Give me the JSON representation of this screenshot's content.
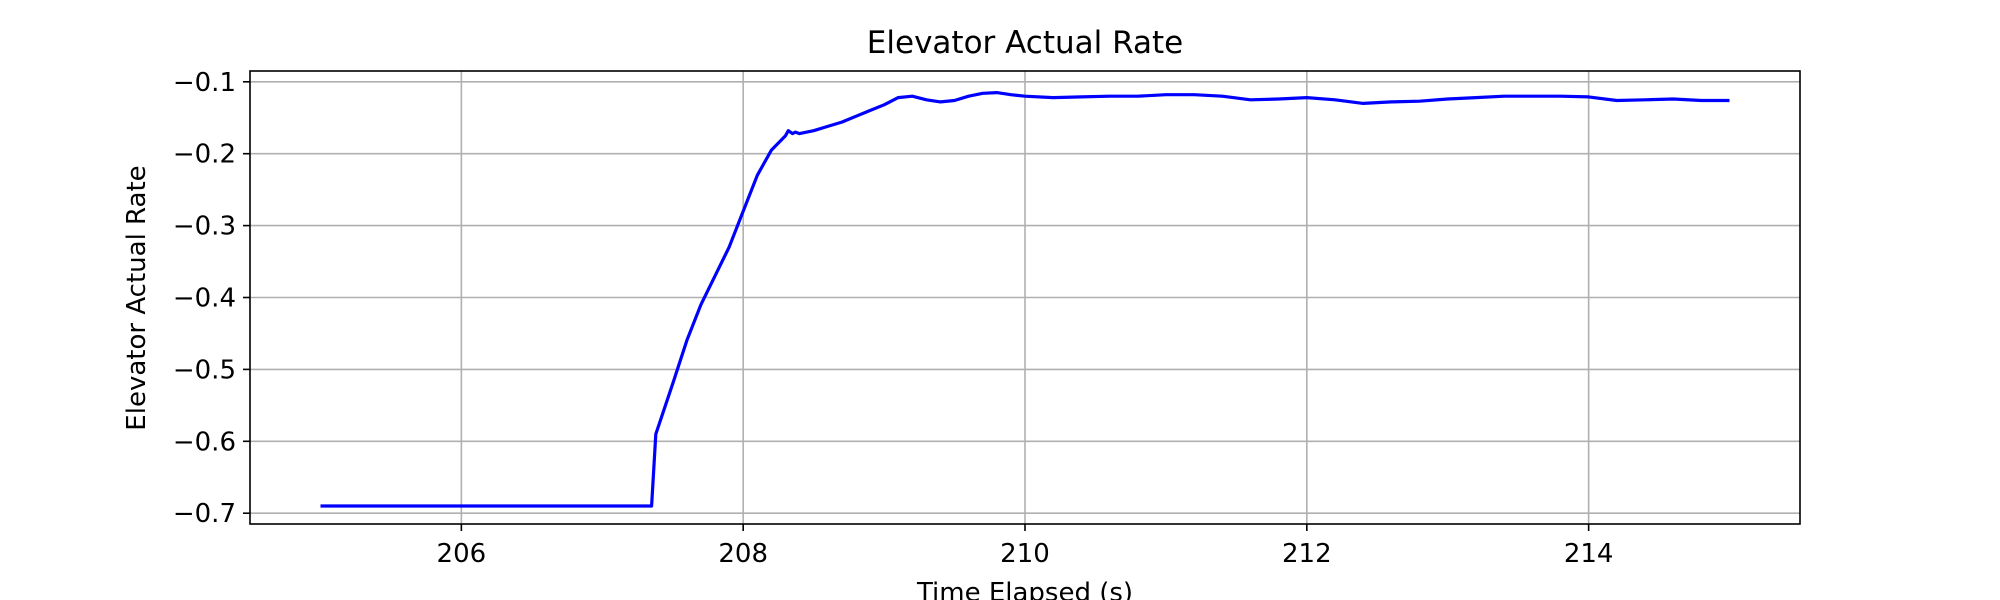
{
  "chart_data": {
    "type": "line",
    "title": "Elevator Actual Rate",
    "xlabel": "Time Elapsed (s)",
    "ylabel": "Elevator Actual Rate",
    "xlim": [
      204.5,
      215.5
    ],
    "ylim": [
      -0.715,
      -0.085
    ],
    "xticks": [
      206,
      208,
      210,
      212,
      214
    ],
    "xtick_labels": [
      "206",
      "208",
      "210",
      "212",
      "214"
    ],
    "yticks": [
      -0.1,
      -0.2,
      -0.3,
      -0.4,
      -0.5,
      -0.6,
      -0.7
    ],
    "ytick_labels": [
      "−0.1",
      "−0.2",
      "−0.3",
      "−0.4",
      "−0.5",
      "−0.6",
      "−0.7"
    ],
    "grid": true,
    "series": [
      {
        "color": "#0000ff",
        "x": [
          205.0,
          206.0,
          207.0,
          207.35,
          207.38,
          207.5,
          207.6,
          207.7,
          207.8,
          207.9,
          208.0,
          208.1,
          208.2,
          208.3,
          208.32,
          208.35,
          208.37,
          208.4,
          208.5,
          208.6,
          208.7,
          208.8,
          208.9,
          209.0,
          209.1,
          209.2,
          209.3,
          209.4,
          209.5,
          209.6,
          209.7,
          209.8,
          209.9,
          210.0,
          210.2,
          210.4,
          210.6,
          210.8,
          211.0,
          211.2,
          211.4,
          211.6,
          211.8,
          212.0,
          212.2,
          212.4,
          212.6,
          212.8,
          213.0,
          213.2,
          213.4,
          213.6,
          213.8,
          214.0,
          214.2,
          214.4,
          214.6,
          214.8,
          215.0
        ],
        "y": [
          -0.69,
          -0.69,
          -0.69,
          -0.69,
          -0.59,
          -0.52,
          -0.46,
          -0.41,
          -0.37,
          -0.33,
          -0.28,
          -0.23,
          -0.195,
          -0.175,
          -0.168,
          -0.172,
          -0.17,
          -0.172,
          -0.168,
          -0.162,
          -0.156,
          -0.148,
          -0.14,
          -0.132,
          -0.122,
          -0.12,
          -0.125,
          -0.128,
          -0.126,
          -0.12,
          -0.116,
          -0.115,
          -0.118,
          -0.12,
          -0.122,
          -0.121,
          -0.12,
          -0.12,
          -0.118,
          -0.118,
          -0.12,
          -0.125,
          -0.124,
          -0.122,
          -0.125,
          -0.13,
          -0.128,
          -0.127,
          -0.124,
          -0.122,
          -0.12,
          -0.12,
          -0.12,
          -0.121,
          -0.126,
          -0.125,
          -0.124,
          -0.126,
          -0.126
        ]
      }
    ]
  }
}
